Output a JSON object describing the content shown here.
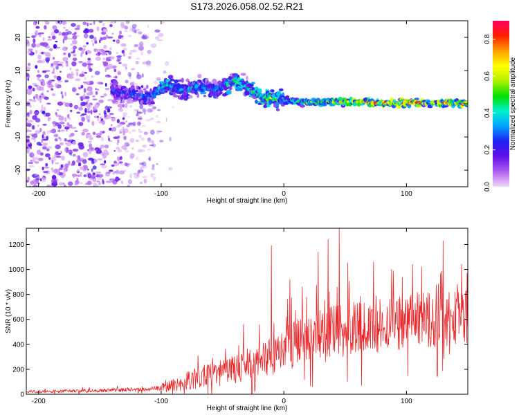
{
  "figure": {
    "title": "S173.2026.058.02.52.R21"
  },
  "colors": {
    "frame": "#000000",
    "snr_line": "#e8272a",
    "background": "#ffffff",
    "empty_region": "#ffffff"
  },
  "chart_data": [
    {
      "type": "heatmap",
      "name": "spectrogram",
      "xlabel": "Height of straight line (km)",
      "ylabel": "Frequency (Hz)",
      "xlim": [
        -210,
        150
      ],
      "ylim": [
        -25,
        25
      ],
      "x_ticks": [
        {
          "value": -200,
          "label": "-200"
        },
        {
          "value": -100,
          "label": "-100"
        },
        {
          "value": 0,
          "label": "0"
        },
        {
          "value": 100,
          "label": "100"
        }
      ],
      "y_ticks": [
        {
          "value": -20,
          "label": "-20"
        },
        {
          "value": -10,
          "label": "-10"
        },
        {
          "value": 0,
          "label": "0"
        },
        {
          "value": 10,
          "label": "10"
        },
        {
          "value": 20,
          "label": "20"
        }
      ],
      "colorbar": {
        "label": "Normalized spectral amplitude",
        "range": [
          0,
          0.9
        ],
        "ticks": [
          {
            "value": 0.0,
            "label": "0.0"
          },
          {
            "value": 0.2,
            "label": "0.2"
          },
          {
            "value": 0.4,
            "label": "0.4"
          },
          {
            "value": 0.6,
            "label": "0.6"
          },
          {
            "value": 0.8,
            "label": "0.8"
          }
        ],
        "colormap": [
          "#f0d8f6",
          "#b060f0",
          "#6010e8",
          "#2020f0",
          "#00a0ff",
          "#00f0d0",
          "#00e000",
          "#b0f000",
          "#ffff00",
          "#ffa000",
          "#ff2000",
          "#ff0060"
        ]
      },
      "features": {
        "noise_region_x": [
          -210,
          -100
        ],
        "signal_ridge": [
          {
            "x": -140,
            "freq": 4,
            "amp": 0.25
          },
          {
            "x": -125,
            "freq": 3,
            "amp": 0.3
          },
          {
            "x": -110,
            "freq": 2,
            "amp": 0.3
          },
          {
            "x": -95,
            "freq": 6,
            "amp": 0.45
          },
          {
            "x": -85,
            "freq": 4,
            "amp": 0.35
          },
          {
            "x": -70,
            "freq": 5,
            "amp": 0.4
          },
          {
            "x": -55,
            "freq": 4,
            "amp": 0.35
          },
          {
            "x": -40,
            "freq": 7,
            "amp": 0.5
          },
          {
            "x": -30,
            "freq": 5,
            "amp": 0.4
          },
          {
            "x": -20,
            "freq": 2,
            "amp": 0.5
          },
          {
            "x": -10,
            "freq": 1.5,
            "amp": 0.55
          },
          {
            "x": 0,
            "freq": 1,
            "amp": 0.4
          },
          {
            "x": 20,
            "freq": 0.5,
            "amp": 0.5
          },
          {
            "x": 40,
            "freq": 0.5,
            "amp": 0.6
          },
          {
            "x": 60,
            "freq": 0.5,
            "amp": 0.65
          },
          {
            "x": 80,
            "freq": 0.3,
            "amp": 0.7
          },
          {
            "x": 100,
            "freq": 0.2,
            "amp": 0.75
          },
          {
            "x": 120,
            "freq": 0.2,
            "amp": 0.7
          },
          {
            "x": 140,
            "freq": 0.2,
            "amp": 0.7
          }
        ]
      }
    },
    {
      "type": "line",
      "name": "snr",
      "xlabel": "Height of straight line (km)",
      "ylabel": "SNR (10 * v/v)",
      "xlim": [
        -210,
        150
      ],
      "ylim": [
        0,
        1330
      ],
      "x_ticks": [
        {
          "value": -200,
          "label": "-200"
        },
        {
          "value": -100,
          "label": "-100"
        },
        {
          "value": 0,
          "label": "0"
        },
        {
          "value": 100,
          "label": "100"
        }
      ],
      "y_ticks": [
        {
          "value": 0,
          "label": "0"
        },
        {
          "value": 200,
          "label": "200"
        },
        {
          "value": 400,
          "label": "400"
        },
        {
          "value": 600,
          "label": "600"
        },
        {
          "value": 800,
          "label": "800"
        },
        {
          "value": 1000,
          "label": "1000"
        },
        {
          "value": 1200,
          "label": "1200"
        }
      ],
      "trend": [
        {
          "x": -210,
          "y": 20
        },
        {
          "x": -150,
          "y": 30
        },
        {
          "x": -110,
          "y": 40
        },
        {
          "x": -95,
          "y": 60
        },
        {
          "x": -70,
          "y": 130
        },
        {
          "x": -50,
          "y": 170
        },
        {
          "x": -30,
          "y": 230
        },
        {
          "x": -10,
          "y": 300
        },
        {
          "x": 0,
          "y": 360
        },
        {
          "x": 20,
          "y": 450
        },
        {
          "x": 50,
          "y": 520
        },
        {
          "x": 80,
          "y": 560
        },
        {
          "x": 110,
          "y": 600
        },
        {
          "x": 150,
          "y": 620
        }
      ],
      "noise_scale": [
        {
          "x": -210,
          "y": 12
        },
        {
          "x": -110,
          "y": 15
        },
        {
          "x": -95,
          "y": 40
        },
        {
          "x": -70,
          "y": 90
        },
        {
          "x": -30,
          "y": 120
        },
        {
          "x": 0,
          "y": 180
        },
        {
          "x": 50,
          "y": 220
        },
        {
          "x": 150,
          "y": 230
        }
      ],
      "peaks": [
        {
          "x": -70,
          "y": 310
        },
        {
          "x": -58,
          "y": 290
        },
        {
          "x": -33,
          "y": 560
        },
        {
          "x": -10,
          "y": 1190
        },
        {
          "x": 5,
          "y": 920
        },
        {
          "x": 15,
          "y": 860
        },
        {
          "x": 28,
          "y": 1140
        },
        {
          "x": 36,
          "y": 1240
        },
        {
          "x": 45,
          "y": 1330
        },
        {
          "x": 52,
          "y": 1050
        },
        {
          "x": 73,
          "y": 1060
        },
        {
          "x": 88,
          "y": 1000
        },
        {
          "x": 105,
          "y": 1040
        },
        {
          "x": 130,
          "y": 1230
        },
        {
          "x": 145,
          "y": 1040
        }
      ]
    }
  ]
}
